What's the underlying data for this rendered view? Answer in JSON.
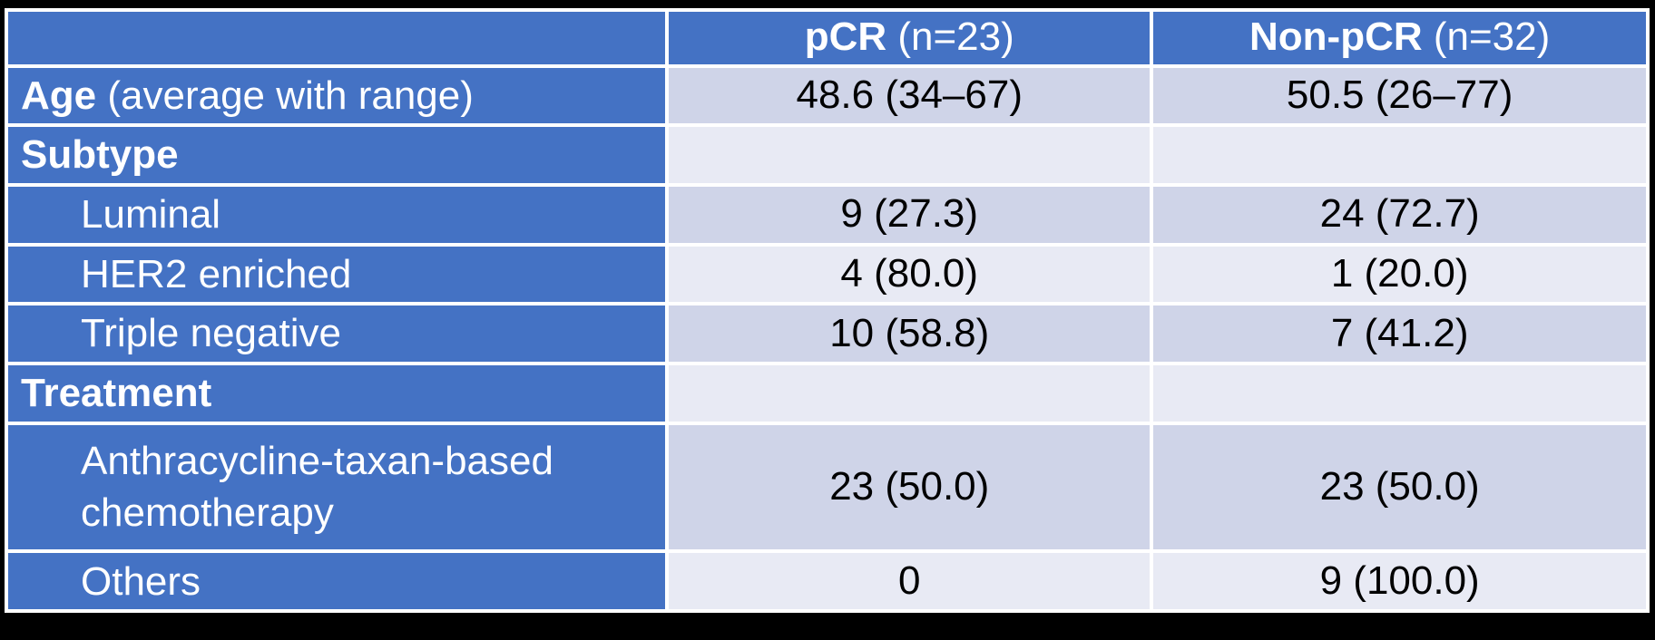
{
  "table": {
    "title_hint": "pCR vs Non-pCR patient characteristics",
    "header": {
      "empty": "",
      "pcr_strong": "pCR",
      "pcr_normal": " (n=23)",
      "nonpcr_strong": "Non-pCR",
      "nonpcr_normal": " (n=32)"
    },
    "rows": [
      {
        "strong": "Age",
        "rest": " (average with range)",
        "pcr": "48.6 (34–67)",
        "nonpcr": "50.5 (26–77)"
      },
      {
        "strong": "Subtype",
        "rest": "",
        "pcr": "",
        "nonpcr": ""
      },
      {
        "strong": "",
        "rest": "Luminal",
        "pcr": "9 (27.3)",
        "nonpcr": "24 (72.7)"
      },
      {
        "strong": "",
        "rest": "HER2 enriched",
        "pcr": "4 (80.0)",
        "nonpcr": "1 (20.0)"
      },
      {
        "strong": "",
        "rest": "Triple negative",
        "pcr": "10 (58.8)",
        "nonpcr": "7 (41.2)"
      },
      {
        "strong": "Treatment",
        "rest": "",
        "pcr": "",
        "nonpcr": ""
      },
      {
        "strong": "",
        "rest": "Anthracycline-taxan-based chemotherapy",
        "pcr": "23 (50.0)",
        "nonpcr": "23 (50.0)"
      },
      {
        "strong": "",
        "rest": "Others",
        "pcr": "0",
        "nonpcr": "9 (100.0)"
      }
    ]
  },
  "colors": {
    "header_blue": "#4472C4",
    "band_dark": "#CFD4E8",
    "band_light": "#E8EAF4",
    "gridline": "#FFFFFF",
    "frame_background": "#000000",
    "label_text": "#FFFFFF",
    "value_text": "#000000"
  }
}
